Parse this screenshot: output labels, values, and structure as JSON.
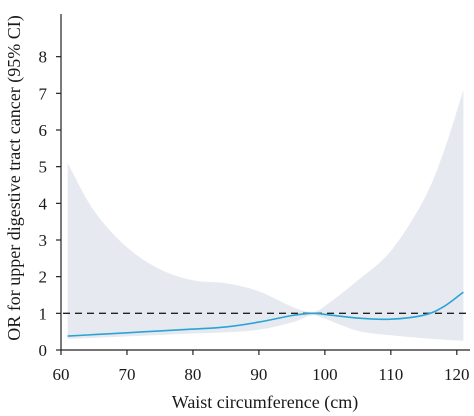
{
  "chart_data": {
    "type": "line",
    "title": "",
    "xlabel": "Waist circumference (cm)",
    "ylabel": "OR for upper digestive tract cancer (95% CI)",
    "xlim": [
      60,
      122
    ],
    "ylim": [
      0,
      9
    ],
    "x_ticks": [
      60,
      70,
      80,
      90,
      100,
      110,
      120
    ],
    "y_ticks": [
      0,
      1,
      2,
      3,
      4,
      5,
      6,
      7,
      8
    ],
    "grid": false,
    "reference_line": {
      "y": 1,
      "style": "dashed"
    },
    "colors": {
      "line": "#2aa4d5",
      "ci_band": "#e6eaf0",
      "reference": "#222222",
      "axis": "#222222"
    },
    "series": [
      {
        "x": [
          61,
          65,
          70,
          75,
          80,
          85,
          90,
          95,
          98,
          100,
          105,
          110,
          115,
          118,
          121
        ],
        "values": [
          0.38,
          0.42,
          0.47,
          0.52,
          0.57,
          0.63,
          0.76,
          0.94,
          1.0,
          0.97,
          0.87,
          0.84,
          0.95,
          1.18,
          1.58
        ],
        "lower": [
          0.3,
          0.33,
          0.37,
          0.41,
          0.45,
          0.48,
          0.55,
          0.75,
          0.95,
          0.85,
          0.52,
          0.4,
          0.32,
          0.28,
          0.25
        ],
        "upper": [
          5.1,
          3.8,
          2.8,
          2.2,
          1.9,
          1.82,
          1.6,
          1.18,
          1.04,
          1.2,
          1.9,
          2.7,
          4.1,
          5.4,
          7.1
        ]
      }
    ]
  }
}
